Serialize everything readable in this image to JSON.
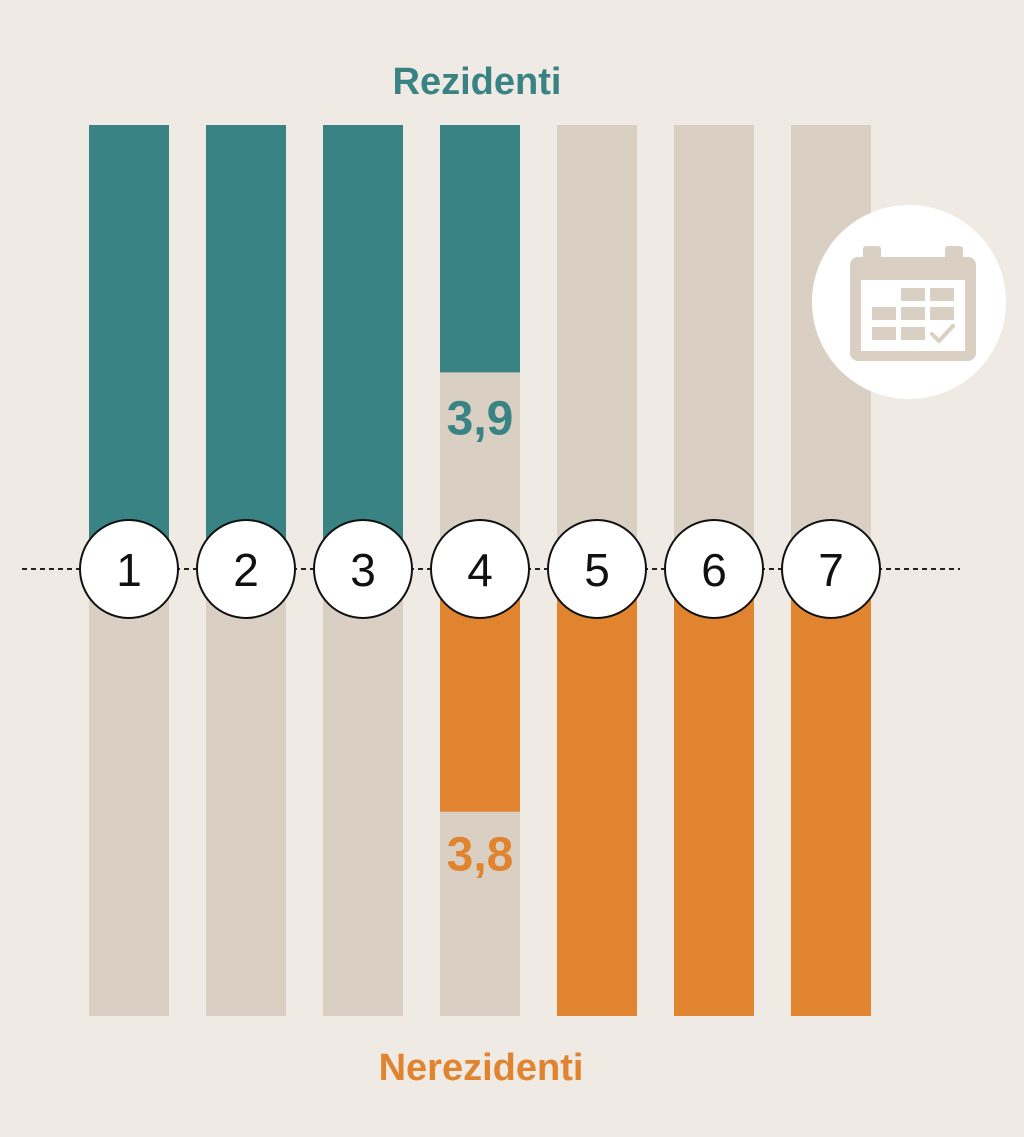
{
  "chart_data": {
    "type": "bar",
    "title": "",
    "categories": [
      "1",
      "2",
      "3",
      "4",
      "5",
      "6",
      "7"
    ],
    "ylim": [
      0,
      7
    ],
    "series": [
      {
        "name": "Rezidenti",
        "values": [
          7,
          7,
          7,
          3.9,
          0,
          0,
          0
        ],
        "direction": "up"
      },
      {
        "name": "Nerezidenti",
        "values": [
          0,
          0,
          0,
          3.8,
          7,
          7,
          7
        ],
        "direction": "down"
      }
    ],
    "data_labels": [
      {
        "series": "Rezidenti",
        "category": "4",
        "text": "3,9"
      },
      {
        "series": "Nerezidenti",
        "category": "4",
        "text": "3,8"
      }
    ]
  },
  "labels": {
    "top": "Rezidenti",
    "bottom": "Nerezidenti"
  },
  "icon": "calendar-icon",
  "colors": {
    "background": "#efebe4",
    "rezidenti": "#3a8384",
    "nerezidenti": "#e08430",
    "track": "#d9d0c3",
    "icon_circle": "#ffffff",
    "icon": "#d9d0c3"
  }
}
